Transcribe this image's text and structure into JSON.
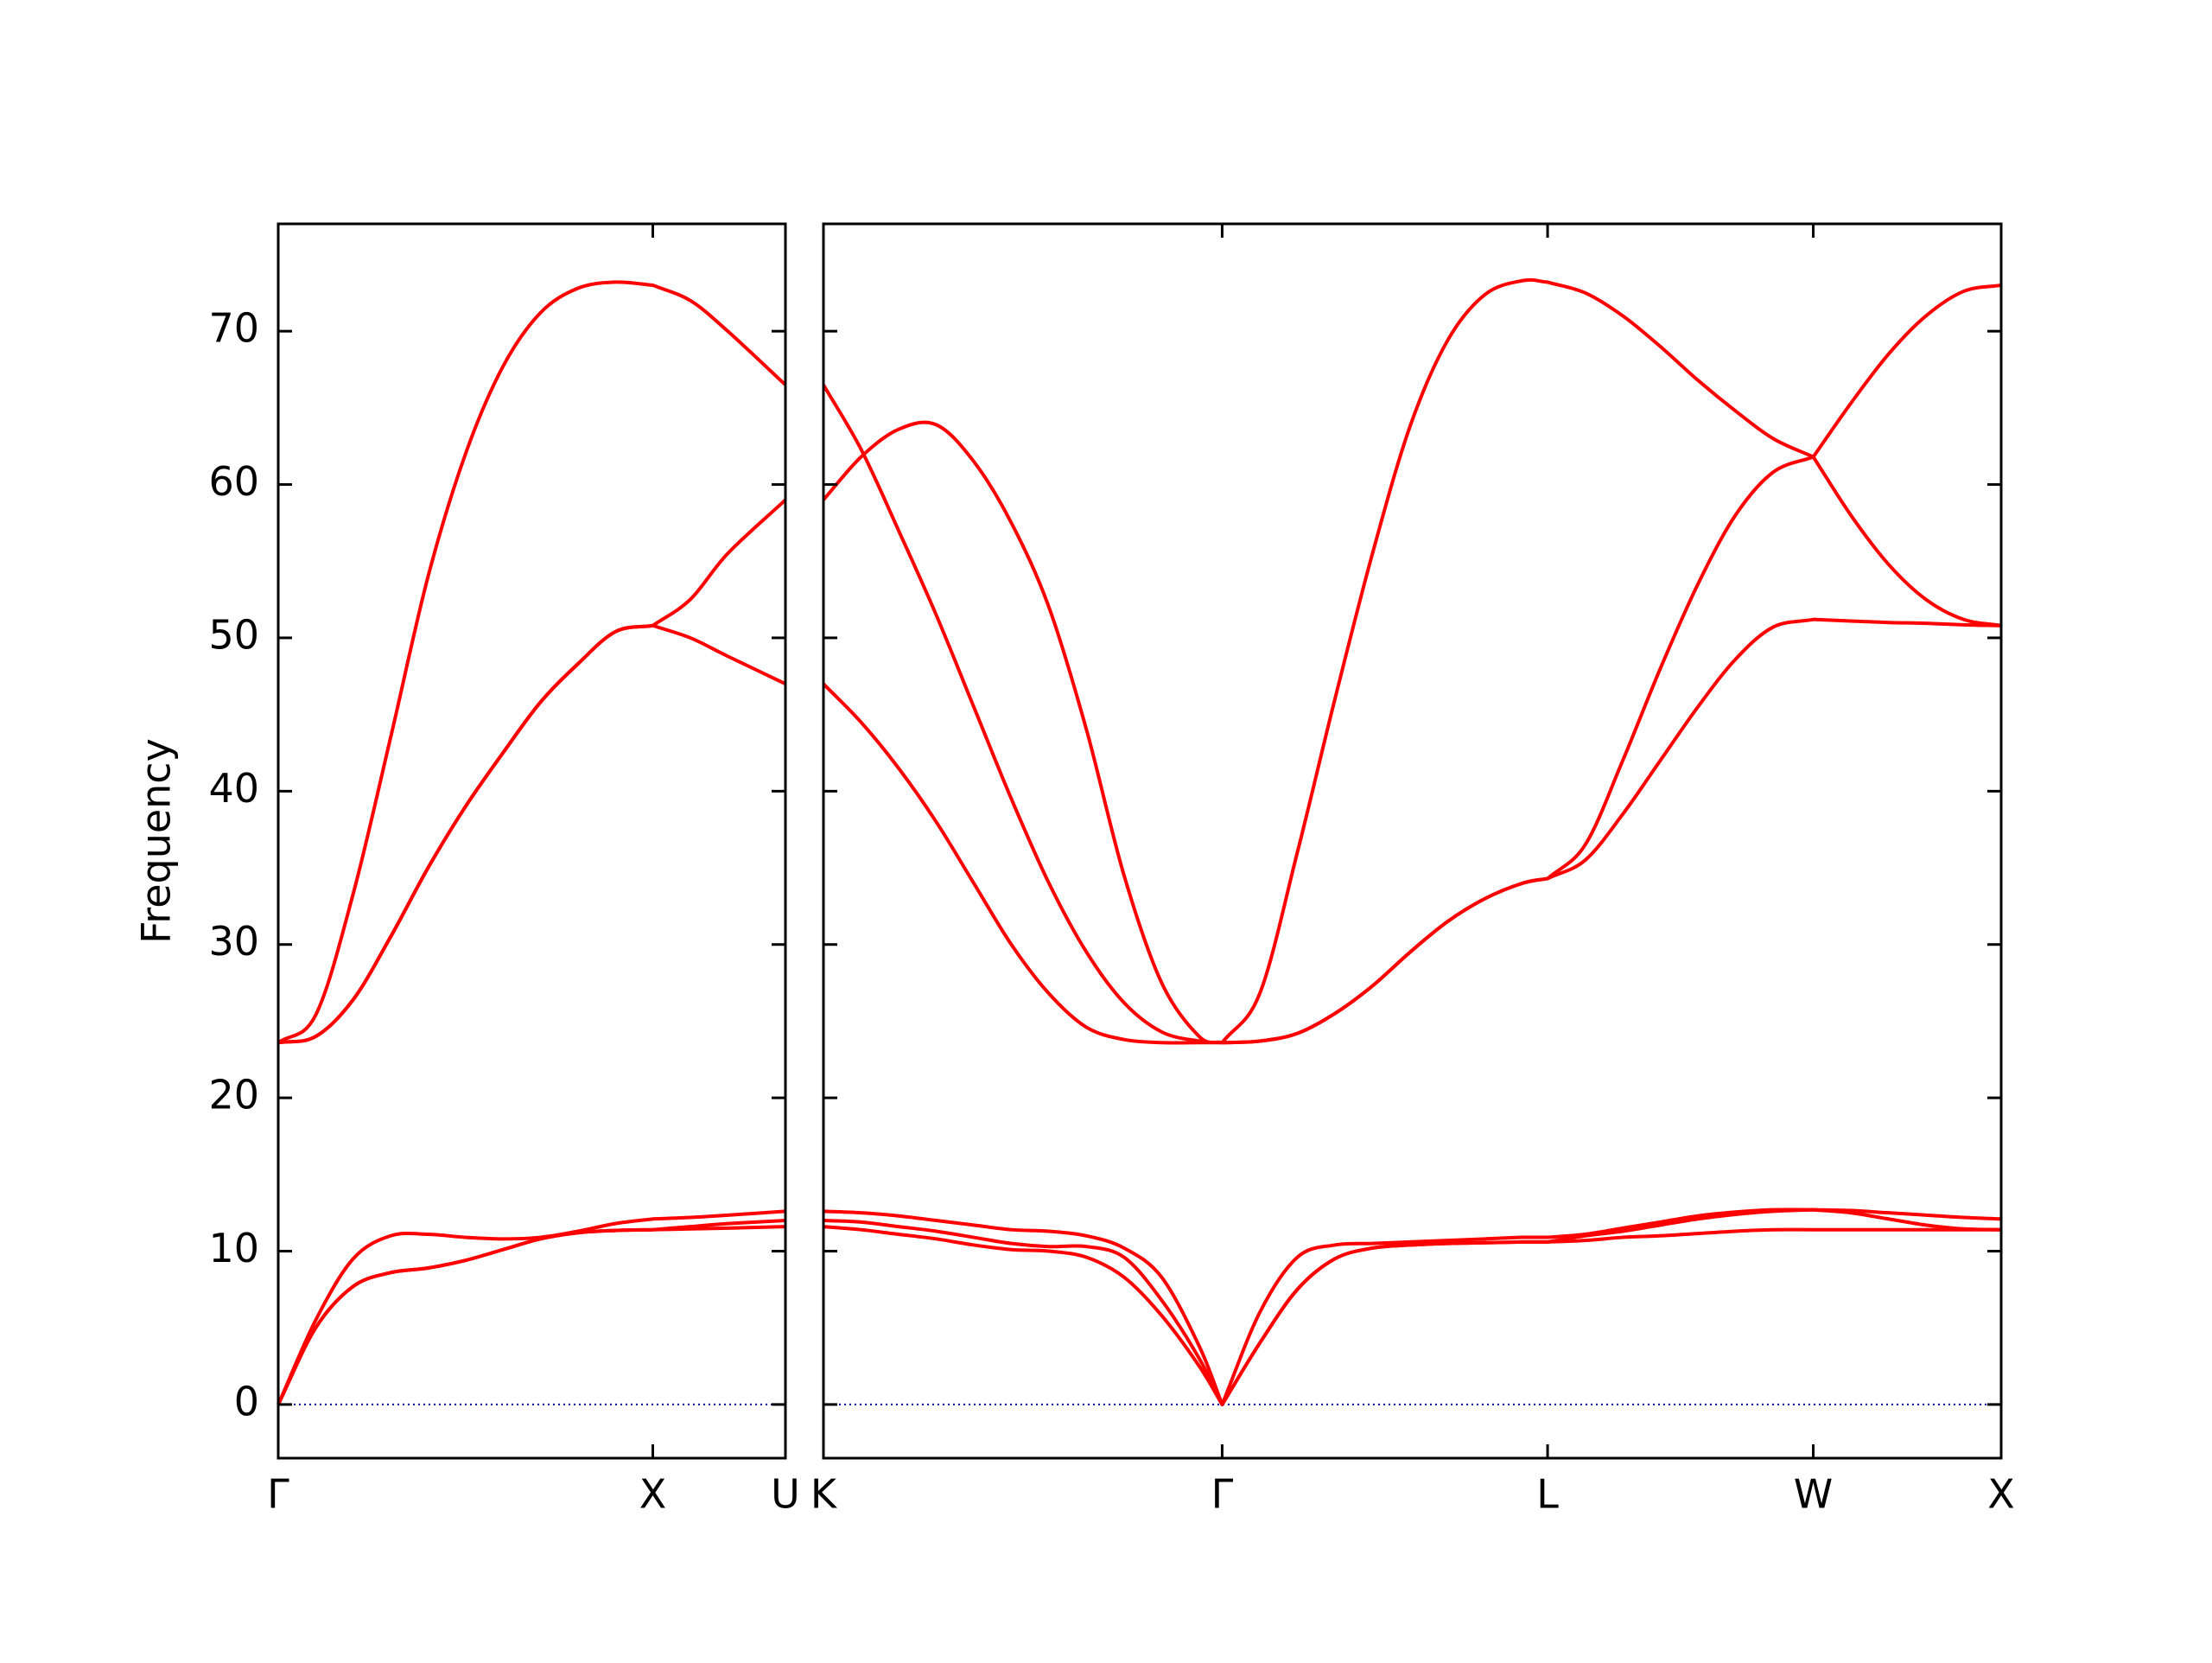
{
  "chart_data": [
    {
      "type": "line",
      "ylabel": "Frequency",
      "x": [
        0,
        0.1,
        0.2,
        0.3,
        0.4,
        0.5,
        0.6,
        0.7,
        0.8,
        0.9,
        1.0,
        1.1,
        1.2,
        1.354
      ],
      "xlim": [
        0,
        1.354
      ],
      "xticks": [
        {
          "value": 0,
          "label": "Γ"
        },
        {
          "value": 1.0,
          "label": "X"
        },
        {
          "value": 1.354,
          "label": "U"
        }
      ],
      "ylim": [
        -3.5,
        77
      ],
      "yticks": [
        0,
        10,
        20,
        30,
        40,
        50,
        60,
        70
      ],
      "ytick_labels": true,
      "zero_line": true,
      "zero_line_color": "#0000aa",
      "series": [
        {
          "color": "#ff0000",
          "values": [
            0,
            5.0,
            7.7,
            8.6,
            8.9,
            9.4,
            10.1,
            10.8,
            11.2,
            11.35,
            11.4,
            11.45,
            11.5,
            11.6
          ]
        },
        {
          "color": "#ff0000",
          "values": [
            0,
            5.0,
            7.7,
            8.6,
            8.9,
            9.4,
            10.1,
            10.8,
            11.2,
            11.35,
            11.4,
            11.6,
            11.8,
            12.0
          ]
        },
        {
          "color": "#ff0000",
          "values": [
            0,
            5.5,
            9.5,
            11.0,
            11.1,
            10.9,
            10.8,
            10.9,
            11.3,
            11.8,
            12.1,
            12.2,
            12.35,
            12.6
          ]
        },
        {
          "color": "#ff0000",
          "values": [
            23.6,
            24.0,
            26.4,
            30.5,
            35,
            39,
            42.5,
            45.8,
            48.3,
            50.4,
            50.8,
            50.0,
            48.8,
            47.0
          ]
        },
        {
          "color": "#ff0000",
          "values": [
            23.6,
            24.0,
            26.4,
            30.5,
            35,
            39,
            42.5,
            45.8,
            48.3,
            50.4,
            50.8,
            52.5,
            55.5,
            59.0
          ]
        },
        {
          "color": "#ff0000",
          "values": [
            23.6,
            25.4,
            33.3,
            43.5,
            54,
            62,
            67.7,
            71.2,
            72.8,
            73.2,
            73.0,
            72.0,
            70.0,
            66.5
          ]
        }
      ]
    },
    {
      "type": "line",
      "x": [
        0,
        0.1,
        0.2,
        0.3,
        0.4,
        0.5,
        0.6,
        0.7,
        0.8,
        0.9,
        1.0,
        1.061,
        1.161,
        1.261,
        1.361,
        1.461,
        1.561,
        1.661,
        1.761,
        1.861,
        1.927,
        2.027,
        2.127,
        2.227,
        2.327,
        2.427,
        2.527,
        2.634,
        2.734,
        2.834,
        2.934,
        3.034,
        3.134
      ],
      "xlim": [
        0,
        3.134
      ],
      "xticks": [
        {
          "value": 0,
          "label": "K"
        },
        {
          "value": 1.061,
          "label": "Γ"
        },
        {
          "value": 1.927,
          "label": "L"
        },
        {
          "value": 2.634,
          "label": "W"
        },
        {
          "value": 3.134,
          "label": "X"
        }
      ],
      "ylim": [
        -3.5,
        77
      ],
      "yticks": [
        0,
        10,
        20,
        30,
        40,
        50,
        60,
        70
      ],
      "ytick_labels": false,
      "zero_line": true,
      "zero_line_color": "#0000aa",
      "series": [
        {
          "color": "#ff0000",
          "values": [
            11.6,
            11.4,
            11.1,
            10.8,
            10.4,
            10.1,
            10.0,
            9.6,
            8.3,
            5.8,
            2.5,
            0,
            4,
            7.5,
            9.5,
            10.2,
            10.4,
            10.5,
            10.55,
            10.6,
            10.6,
            10.7,
            10.9,
            11.0,
            11.15,
            11.3,
            11.4,
            11.4,
            11.4,
            11.4,
            11.4,
            11.4,
            11.4
          ]
        },
        {
          "color": "#ff0000",
          "values": [
            12.0,
            11.9,
            11.6,
            11.3,
            10.9,
            10.5,
            10.3,
            10.3,
            9.6,
            6.8,
            3.0,
            0,
            4,
            7.5,
            9.5,
            10.2,
            10.4,
            10.5,
            10.55,
            10.6,
            10.6,
            11.0,
            11.3,
            11.7,
            12.1,
            12.4,
            12.6,
            12.7,
            12.5,
            12.1,
            11.7,
            11.45,
            11.4
          ]
        },
        {
          "color": "#ff0000",
          "values": [
            12.6,
            12.5,
            12.3,
            12.0,
            11.7,
            11.4,
            11.3,
            11.0,
            10.2,
            8.3,
            3.8,
            0,
            6,
            9.6,
            10.4,
            10.5,
            10.6,
            10.7,
            10.8,
            10.9,
            10.9,
            11.1,
            11.5,
            11.9,
            12.3,
            12.55,
            12.7,
            12.7,
            12.65,
            12.5,
            12.35,
            12.2,
            12.1
          ]
        },
        {
          "color": "#ff0000",
          "values": [
            47.0,
            44.5,
            41.5,
            38.0,
            34.0,
            30.0,
            26.8,
            24.6,
            23.8,
            23.6,
            23.6,
            23.6,
            23.7,
            24.2,
            25.5,
            27.3,
            29.5,
            31.5,
            33.0,
            34.0,
            34.3,
            35.5,
            38.5,
            42,
            45.5,
            48.6,
            50.7,
            51.2,
            51.1,
            51.0,
            50.95,
            50.85,
            50.8
          ]
        },
        {
          "color": "#ff0000",
          "values": [
            66.5,
            62.3,
            57.0,
            51.5,
            45.5,
            39.5,
            34.0,
            29.5,
            26.2,
            24.3,
            23.7,
            23.6,
            23.7,
            24.2,
            25.5,
            27.3,
            29.5,
            31.5,
            33.0,
            34.0,
            34.3,
            36.5,
            42,
            48,
            53.5,
            58,
            60.8,
            61.8,
            58.0,
            54.8,
            52.5,
            51.2,
            50.8
          ]
        },
        {
          "color": "#ff0000",
          "values": [
            59.0,
            61.8,
            63.6,
            63.9,
            61.5,
            57.5,
            52.0,
            44.0,
            34.5,
            27.5,
            24.0,
            23.6,
            26.8,
            36,
            46,
            55.5,
            63.8,
            69.4,
            72.4,
            73.3,
            73.2,
            72.5,
            71.0,
            69.0,
            66.8,
            64.8,
            63.0,
            61.8,
            65.3,
            68.5,
            71.0,
            72.6,
            73.0
          ]
        }
      ]
    }
  ]
}
